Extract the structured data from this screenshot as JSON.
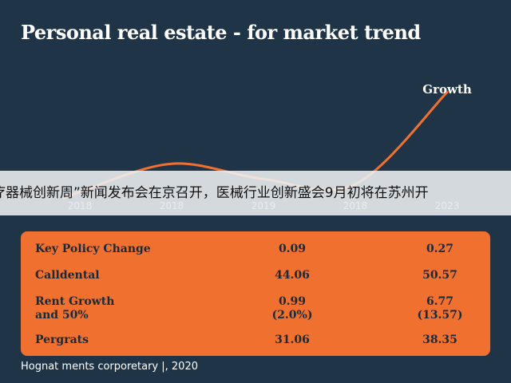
{
  "chart_data": {
    "type": "line",
    "title": "Personal real estate - for market trend",
    "x": [
      "2018",
      "2018",
      "2019",
      "2018",
      "2023"
    ],
    "values": [
      0.3,
      1.4,
      0.8,
      0.6,
      4.2
    ],
    "annotation": "Growth",
    "line_color": "#f07030"
  },
  "banner_text": "疗器械创新周”新闻发布会在京召开，医械行业创新盛会9月初将在苏州开",
  "table": {
    "rows": [
      {
        "label": [
          "Key Policy Change"
        ],
        "v1": [
          "0.09"
        ],
        "v2": [
          "0.27"
        ]
      },
      {
        "label": [
          "Calldental"
        ],
        "v1": [
          "44.06"
        ],
        "v2": [
          "50.57"
        ]
      },
      {
        "label": [
          "Rent Growth",
          "and 50%"
        ],
        "v1": [
          "0.99",
          "(2.0%)"
        ],
        "v2": [
          "6.77",
          "(13.57)"
        ]
      },
      {
        "label": [
          "Pergrats"
        ],
        "v1": [
          "31.06"
        ],
        "v2": [
          "38.35"
        ]
      }
    ]
  },
  "footer": "Hognat ments corporetary |, 2020",
  "colors": {
    "background": "#1f3547",
    "accent": "#f07030",
    "text_dark": "#1b2a38"
  }
}
